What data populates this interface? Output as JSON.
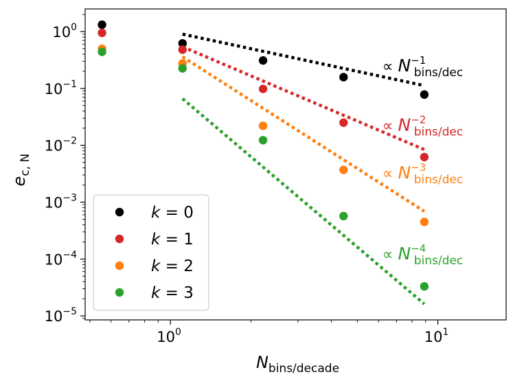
{
  "chart_data": {
    "type": "scatter",
    "xscale": "log",
    "yscale": "log",
    "xlim": [
      0.48,
      18
    ],
    "ylim": [
      8.5e-06,
      2.5
    ],
    "xlabel": {
      "base": "N",
      "sub": "bins/decade"
    },
    "ylabel": {
      "base": "e",
      "sub": "c, N"
    },
    "xticks": [
      {
        "value": 1,
        "base": "10",
        "exp": "0"
      },
      {
        "value": 10,
        "base": "10",
        "exp": "1"
      }
    ],
    "yticks": [
      {
        "value": 1,
        "base": "10",
        "exp": "0"
      },
      {
        "value": 0.1,
        "base": "10",
        "exp": "−1"
      },
      {
        "value": 0.01,
        "base": "10",
        "exp": "−2"
      },
      {
        "value": 0.001,
        "base": "10",
        "exp": "−3"
      },
      {
        "value": 0.0001,
        "base": "10",
        "exp": "−4"
      },
      {
        "value": 1e-05,
        "base": "10",
        "exp": "−5"
      }
    ],
    "series": [
      {
        "name": "k = 0",
        "k": "0",
        "color": "#000000",
        "x": [
          0.555,
          1.11,
          2.22,
          4.44,
          8.9
        ],
        "y": [
          1.32,
          0.62,
          0.31,
          0.158,
          0.078
        ]
      },
      {
        "name": "k = 1",
        "k": "1",
        "color": "#d62728",
        "x": [
          0.555,
          1.11,
          2.22,
          4.44,
          8.9
        ],
        "y": [
          0.95,
          0.48,
          0.098,
          0.025,
          0.0062
        ]
      },
      {
        "name": "k = 2",
        "k": "2",
        "color": "#ff7f0e",
        "x": [
          0.555,
          1.11,
          2.22,
          4.44,
          8.9
        ],
        "y": [
          0.5,
          0.275,
          0.022,
          0.0037,
          0.00045
        ]
      },
      {
        "name": "k = 3",
        "k": "3",
        "color": "#2ca02c",
        "x": [
          0.555,
          1.11,
          2.22,
          4.44,
          8.9
        ],
        "y": [
          0.44,
          0.225,
          0.0123,
          0.00057,
          3.3e-05
        ]
      }
    ],
    "fit_lines": [
      {
        "color": "#000000",
        "x": [
          1.11,
          8.9
        ],
        "y": [
          0.9,
          0.112
        ],
        "label": {
          "prefix": "∝ ",
          "base": "N",
          "exp": "−1",
          "sub": "bins/dec"
        },
        "label_at": [
          6.2,
          0.2
        ]
      },
      {
        "color": "#d62728",
        "x": [
          1.11,
          8.9
        ],
        "y": [
          0.54,
          0.0084
        ],
        "label": {
          "prefix": "∝ ",
          "base": "N",
          "exp": "−2",
          "sub": "bins/dec"
        },
        "label_at": [
          6.2,
          0.018
        ]
      },
      {
        "color": "#ff7f0e",
        "x": [
          1.11,
          8.9
        ],
        "y": [
          0.36,
          0.00069
        ],
        "label": {
          "prefix": "∝ ",
          "base": "N",
          "exp": "−3",
          "sub": "bins/dec"
        },
        "label_at": [
          6.2,
          0.0026
        ]
      },
      {
        "color": "#2ca02c",
        "x": [
          1.11,
          8.9
        ],
        "y": [
          0.066,
          1.62e-05
        ],
        "label": {
          "prefix": "∝ ",
          "base": "N",
          "exp": "−4",
          "sub": "bins/dec"
        },
        "label_at": [
          6.2,
          9.8e-05
        ]
      }
    ],
    "legend": {
      "position": "lower-left",
      "var": "k",
      "eq": " = "
    },
    "grid": false
  }
}
